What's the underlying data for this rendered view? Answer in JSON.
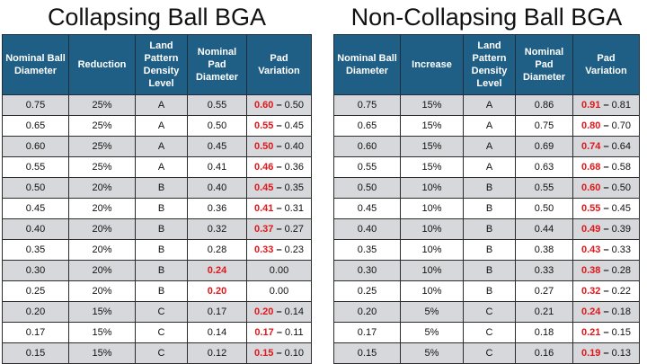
{
  "left": {
    "title": "Collapsing Ball BGA",
    "headers": [
      "Nominal Ball Diameter",
      "Reduction",
      "Land Pattern Density Level",
      "Nominal Pad Diameter",
      "Pad Variation"
    ],
    "rows": [
      {
        "ball": "0.75",
        "change": "25%",
        "level": "A",
        "pad": "0.55",
        "pad_red": false,
        "var_hi": "0.60",
        "var_lo": "0.50"
      },
      {
        "ball": "0.65",
        "change": "25%",
        "level": "A",
        "pad": "0.50",
        "pad_red": false,
        "var_hi": "0.55",
        "var_lo": "0.45"
      },
      {
        "ball": "0.60",
        "change": "25%",
        "level": "A",
        "pad": "0.45",
        "pad_red": false,
        "var_hi": "0.50",
        "var_lo": "0.40"
      },
      {
        "ball": "0.55",
        "change": "25%",
        "level": "A",
        "pad": "0.41",
        "pad_red": false,
        "var_hi": "0.46",
        "var_lo": "0.36"
      },
      {
        "ball": "0.50",
        "change": "20%",
        "level": "B",
        "pad": "0.40",
        "pad_red": false,
        "var_hi": "0.45",
        "var_lo": "0.35"
      },
      {
        "ball": "0.45",
        "change": "20%",
        "level": "B",
        "pad": "0.36",
        "pad_red": false,
        "var_hi": "0.41",
        "var_lo": "0.31"
      },
      {
        "ball": "0.40",
        "change": "20%",
        "level": "B",
        "pad": "0.32",
        "pad_red": false,
        "var_hi": "0.37",
        "var_lo": "0.27"
      },
      {
        "ball": "0.35",
        "change": "20%",
        "level": "B",
        "pad": "0.28",
        "pad_red": false,
        "var_hi": "0.33",
        "var_lo": "0.23"
      },
      {
        "ball": "0.30",
        "change": "20%",
        "level": "B",
        "pad": "0.24",
        "pad_red": true,
        "var_plain": "0.00"
      },
      {
        "ball": "0.25",
        "change": "20%",
        "level": "B",
        "pad": "0.20",
        "pad_red": true,
        "var_plain": "0.00"
      },
      {
        "ball": "0.20",
        "change": "15%",
        "level": "C",
        "pad": "0.17",
        "pad_red": false,
        "var_hi": "0.20",
        "var_lo": "0.14"
      },
      {
        "ball": "0.17",
        "change": "15%",
        "level": "C",
        "pad": "0.14",
        "pad_red": false,
        "var_hi": "0.17",
        "var_lo": "0.11"
      },
      {
        "ball": "0.15",
        "change": "15%",
        "level": "C",
        "pad": "0.12",
        "pad_red": false,
        "var_hi": "0.15",
        "var_lo": "0.10"
      }
    ]
  },
  "right": {
    "title": "Non-Collapsing Ball BGA",
    "headers": [
      "Nominal Ball Diameter",
      "Increase",
      "Land Pattern Density Level",
      "Nominal Pad Diameter",
      "Pad Variation"
    ],
    "rows": [
      {
        "ball": "0.75",
        "change": "15%",
        "level": "A",
        "pad": "0.86",
        "pad_red": false,
        "var_hi": "0.91",
        "var_lo": "0.81"
      },
      {
        "ball": "0.65",
        "change": "15%",
        "level": "A",
        "pad": "0.75",
        "pad_red": false,
        "var_hi": "0.80",
        "var_lo": "0.70"
      },
      {
        "ball": "0.60",
        "change": "15%",
        "level": "A",
        "pad": "0.69",
        "pad_red": false,
        "var_hi": "0.74",
        "var_lo": "0.64"
      },
      {
        "ball": "0.55",
        "change": "15%",
        "level": "A",
        "pad": "0.63",
        "pad_red": false,
        "var_hi": "0.68",
        "var_lo": "0.58"
      },
      {
        "ball": "0.50",
        "change": "10%",
        "level": "B",
        "pad": "0.55",
        "pad_red": false,
        "var_hi": "0.60",
        "var_lo": "0.50"
      },
      {
        "ball": "0.45",
        "change": "10%",
        "level": "B",
        "pad": "0.50",
        "pad_red": false,
        "var_hi": "0.55",
        "var_lo": "0.45"
      },
      {
        "ball": "0.40",
        "change": "10%",
        "level": "B",
        "pad": "0.44",
        "pad_red": false,
        "var_hi": "0.49",
        "var_lo": "0.39"
      },
      {
        "ball": "0.35",
        "change": "10%",
        "level": "B",
        "pad": "0.38",
        "pad_red": false,
        "var_hi": "0.43",
        "var_lo": "0.33"
      },
      {
        "ball": "0.30",
        "change": "10%",
        "level": "B",
        "pad": "0.33",
        "pad_red": false,
        "var_hi": "0.38",
        "var_lo": "0.28"
      },
      {
        "ball": "0.25",
        "change": "10%",
        "level": "B",
        "pad": "0.27",
        "pad_red": false,
        "var_hi": "0.32",
        "var_lo": "0.22"
      },
      {
        "ball": "0.20",
        "change": "5%",
        "level": "C",
        "pad": "0.21",
        "pad_red": false,
        "var_hi": "0.24",
        "var_lo": "0.18"
      },
      {
        "ball": "0.17",
        "change": "5%",
        "level": "C",
        "pad": "0.18",
        "pad_red": false,
        "var_hi": "0.21",
        "var_lo": "0.15"
      },
      {
        "ball": "0.15",
        "change": "5%",
        "level": "C",
        "pad": "0.16",
        "pad_red": false,
        "var_hi": "0.19",
        "var_lo": "0.13"
      }
    ]
  },
  "dash": "–",
  "colors": {
    "header_bg": "#1f5f86",
    "highlight": "#e0171b",
    "stripe": "#d6d8db"
  }
}
